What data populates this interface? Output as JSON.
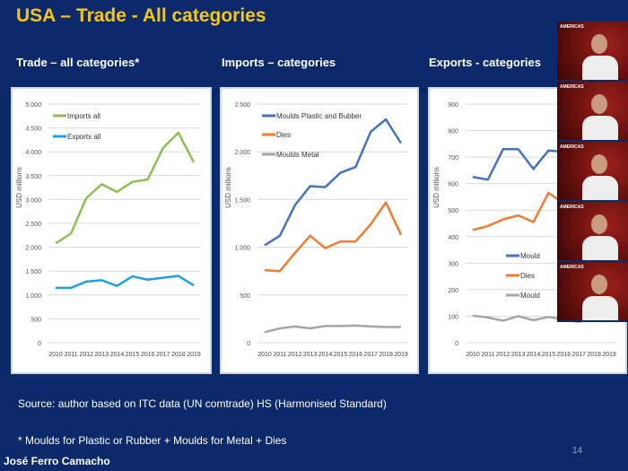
{
  "title": "USA – Trade - All categories",
  "subtitles": [
    "Trade – all categories*",
    "Imports – categories",
    "Exports - categories"
  ],
  "source": "Source: author based on ITC data (UN comtrade) HS (Harmonised Standard)",
  "footnote": "* Moulds for Plastic or Rubber + Moulds for Metal + Dies",
  "author": "José Ferro Camacho",
  "page_number": "14",
  "video_tiles": [
    {
      "logo": "AMERICAS"
    },
    {
      "logo": "AMERICAS"
    },
    {
      "logo": "AMERICAS"
    },
    {
      "logo": "AMERICAS"
    },
    {
      "logo": "AMERICAS"
    }
  ],
  "chart_data": [
    {
      "type": "line",
      "ylabel": "USD millions",
      "ylim": [
        0,
        5000
      ],
      "yticks": [
        0,
        500,
        1000,
        1500,
        2000,
        2500,
        3000,
        3500,
        4000,
        4500,
        5000
      ],
      "ytick_labels": [
        "0",
        "500",
        "1.000",
        "1.500",
        "2.000",
        "2.500",
        "3.000",
        "3.500",
        "4.000",
        "4.500",
        "5.000"
      ],
      "categories": [
        "2010",
        "2011",
        "2012",
        "2013",
        "2014",
        "2015",
        "2016",
        "2017",
        "2018",
        "2019"
      ],
      "legend": "top-left",
      "grid": true,
      "series": [
        {
          "name": "Imports all",
          "color": "#8cc152",
          "values": [
            2080,
            2290,
            3030,
            3320,
            3160,
            3370,
            3420,
            4080,
            4400,
            3780
          ]
        },
        {
          "name": "Exports all",
          "color": "#1ea0e0",
          "values": [
            1150,
            1150,
            1280,
            1310,
            1190,
            1390,
            1320,
            1360,
            1400,
            1200
          ]
        }
      ]
    },
    {
      "type": "line",
      "ylabel": "USD millions",
      "ylim": [
        0,
        2500
      ],
      "yticks": [
        0,
        500,
        1000,
        1500,
        2000,
        2500
      ],
      "ytick_labels": [
        "0",
        "500",
        "1.000",
        "1.500",
        "2.000",
        "2.500"
      ],
      "categories": [
        "2010",
        "2011",
        "2012",
        "2013",
        "2014",
        "2015",
        "2016",
        "2017",
        "2018",
        "2019"
      ],
      "legend": "top-left",
      "grid": true,
      "series": [
        {
          "name": "Moulds Plastic and Bubber",
          "color": "#4472c4",
          "values": [
            1020,
            1120,
            1440,
            1640,
            1630,
            1780,
            1840,
            2210,
            2340,
            2090
          ]
        },
        {
          "name": "Dies",
          "color": "#ed7d31",
          "values": [
            760,
            750,
            940,
            1120,
            990,
            1060,
            1060,
            1240,
            1470,
            1130
          ]
        },
        {
          "name": "Moulds Metal",
          "color": "#a5a5a5",
          "values": [
            110,
            150,
            170,
            150,
            175,
            175,
            180,
            170,
            165,
            165
          ]
        }
      ]
    },
    {
      "type": "line",
      "ylabel": "USD millions",
      "ylim": [
        0,
        900
      ],
      "yticks": [
        0,
        100,
        200,
        300,
        400,
        500,
        600,
        700,
        800,
        900
      ],
      "ytick_labels": [
        "0",
        "100",
        "200",
        "300",
        "400",
        "500",
        "600",
        "700",
        "800",
        "900"
      ],
      "categories": [
        "2010",
        "2011",
        "2012",
        "2013",
        "2014",
        "2015",
        "2016",
        "2017",
        "2018",
        "2019"
      ],
      "legend": "middle-right",
      "grid": true,
      "series": [
        {
          "name": "Mould",
          "color": "#4472c4",
          "values": [
            625,
            615,
            730,
            730,
            655,
            725,
            720,
            null,
            null,
            null
          ]
        },
        {
          "name": "Dies",
          "color": "#ed7d31",
          "values": [
            425,
            440,
            465,
            480,
            455,
            565,
            525,
            null,
            null,
            null
          ]
        },
        {
          "name": "Mould",
          "color": "#a5a5a5",
          "values": [
            102,
            95,
            83,
            100,
            85,
            97,
            87,
            78,
            95,
            85
          ]
        }
      ]
    }
  ]
}
